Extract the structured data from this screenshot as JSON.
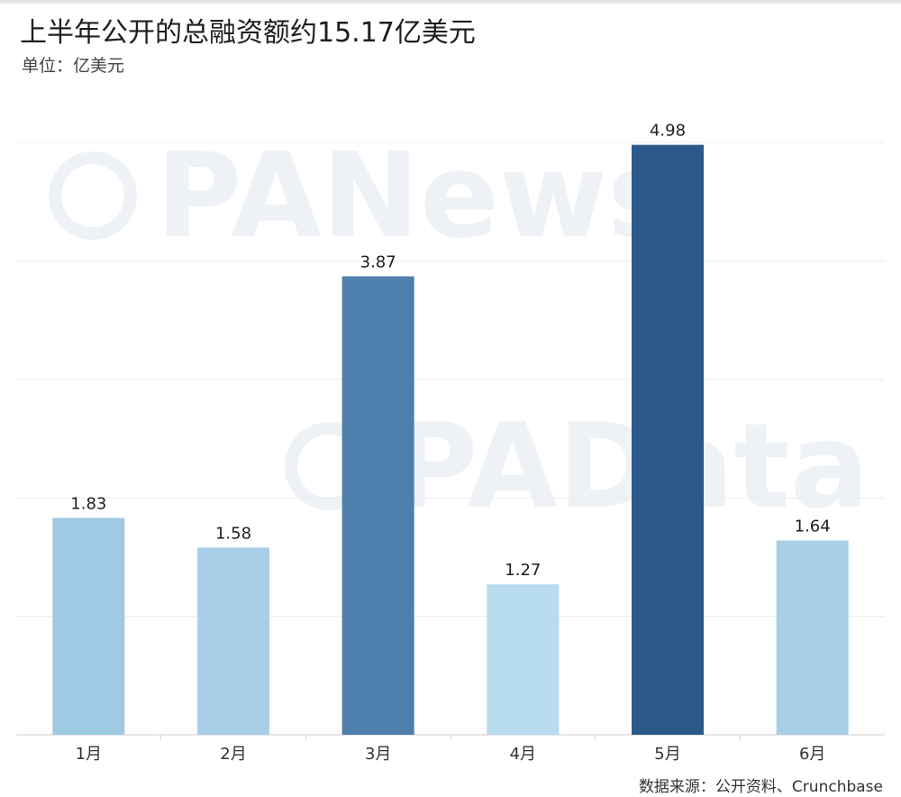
{
  "header": {
    "title": "上半年公开的总融资额约15.17亿美元",
    "unit_label": "单位：亿美元"
  },
  "footer": {
    "source": "数据来源：公开资料、Crunchbase"
  },
  "watermarks": [
    "PANews",
    "PAData"
  ],
  "chart_data": {
    "type": "bar",
    "title": "上半年公开的总融资额约15.17亿美元",
    "ylabel": "单位：亿美元",
    "xlabel": "",
    "categories": [
      "1月",
      "2月",
      "3月",
      "4月",
      "5月",
      "6月"
    ],
    "values": [
      1.83,
      1.58,
      3.87,
      1.27,
      4.98,
      1.64
    ],
    "data_labels": [
      "1.83",
      "1.58",
      "3.87",
      "1.27",
      "4.98",
      "1.64"
    ],
    "bar_colors": [
      "#9ecae4",
      "#a7d0e8",
      "#4e7fad",
      "#b7dcef",
      "#2b5a8a",
      "#a7d0e8"
    ],
    "ylim": [
      0,
      5
    ],
    "grid": true,
    "legend": "none"
  }
}
